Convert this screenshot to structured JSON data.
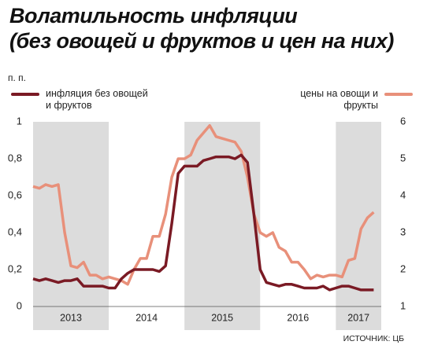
{
  "chart_data": {
    "type": "line",
    "title": [
      "Волатильность инфляции",
      "(без овощей и фруктов и цен на них)"
    ],
    "y_label": "п. п.",
    "source": "ИСТОЧНИК: ЦБ",
    "xlim": [
      2013,
      2017.6
    ],
    "xticks": [
      {
        "value": 2013.5,
        "label": "2013"
      },
      {
        "value": 2014.5,
        "label": "2014"
      },
      {
        "value": 2015.5,
        "label": "2015"
      },
      {
        "value": 2016.5,
        "label": "2016"
      },
      {
        "value": 2017.3,
        "label": "2017"
      }
    ],
    "shaded_years": [
      2013,
      2015,
      2017
    ],
    "shade_color": "#dcdcdc",
    "ylim": [
      0,
      1
    ],
    "yticks": [
      {
        "value": 0,
        "label": "0"
      },
      {
        "value": 0.2,
        "label": "0,2"
      },
      {
        "value": 0.4,
        "label": "0,4"
      },
      {
        "value": 0.6,
        "label": "0,6"
      },
      {
        "value": 0.8,
        "label": "0,8"
      },
      {
        "value": 1,
        "label": "1"
      }
    ],
    "y2lim": [
      1,
      6
    ],
    "y2ticks": [
      1,
      2,
      3,
      4,
      5,
      6
    ],
    "x": [
      2013.0,
      2013.083,
      2013.167,
      2013.25,
      2013.333,
      2013.417,
      2013.5,
      2013.583,
      2013.667,
      2013.75,
      2013.833,
      2013.917,
      2014.0,
      2014.083,
      2014.167,
      2014.25,
      2014.333,
      2014.417,
      2014.5,
      2014.583,
      2014.667,
      2014.75,
      2014.833,
      2014.917,
      2015.0,
      2015.083,
      2015.167,
      2015.25,
      2015.333,
      2015.417,
      2015.5,
      2015.583,
      2015.667,
      2015.75,
      2015.833,
      2015.917,
      2016.0,
      2016.083,
      2016.167,
      2016.25,
      2016.333,
      2016.417,
      2016.5,
      2016.583,
      2016.667,
      2016.75,
      2016.833,
      2016.917,
      2017.0,
      2017.083,
      2017.167,
      2017.25,
      2017.333,
      2017.417,
      2017.5
    ],
    "series": [
      {
        "name": "инфляция без овощей и фруктов",
        "color": "#7a1a24",
        "axis": "y",
        "values": [
          0.15,
          0.14,
          0.15,
          0.14,
          0.13,
          0.14,
          0.14,
          0.15,
          0.11,
          0.11,
          0.11,
          0.11,
          0.1,
          0.1,
          0.15,
          0.18,
          0.2,
          0.2,
          0.2,
          0.2,
          0.19,
          0.22,
          0.45,
          0.72,
          0.76,
          0.76,
          0.76,
          0.79,
          0.8,
          0.81,
          0.81,
          0.81,
          0.8,
          0.82,
          0.78,
          0.5,
          0.2,
          0.13,
          0.12,
          0.11,
          0.12,
          0.12,
          0.11,
          0.1,
          0.1,
          0.1,
          0.11,
          0.09,
          0.1,
          0.11,
          0.11,
          0.1,
          0.09,
          0.09,
          0.09
        ]
      },
      {
        "name": "цены на овощи и фрукты",
        "color": "#e8907a",
        "axis": "y2",
        "values": [
          4.25,
          4.2,
          4.3,
          4.25,
          4.3,
          3.0,
          2.1,
          2.05,
          2.2,
          1.85,
          1.85,
          1.75,
          1.8,
          1.75,
          1.7,
          1.6,
          2.0,
          2.3,
          2.3,
          2.9,
          2.9,
          3.5,
          4.5,
          5.0,
          5.0,
          5.1,
          5.5,
          5.7,
          5.9,
          5.6,
          5.55,
          5.5,
          5.45,
          5.2,
          4.5,
          3.5,
          3.0,
          2.9,
          3.0,
          2.6,
          2.5,
          2.2,
          2.2,
          2.0,
          1.75,
          1.85,
          1.8,
          1.85,
          1.85,
          1.8,
          2.25,
          2.3,
          3.1,
          3.4,
          3.55
        ]
      }
    ]
  }
}
